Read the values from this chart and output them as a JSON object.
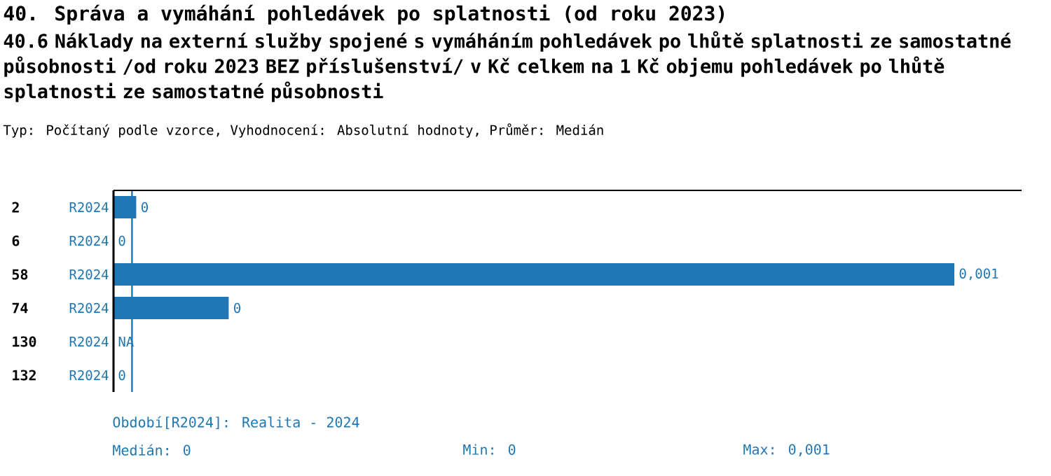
{
  "chart_data": {
    "type": "bar",
    "orientation": "horizontal",
    "title": "40. Správa a vymáhání pohledávek po splatnosti (od roku 2023)",
    "subtitle": "40.6 Náklady na externí služby spojené s vymáháním  pohledávek po lhůtě splatnosti ze samostatné působnosti /od roku 2023 BEZ příslušenství/ v Kč celkem na 1 Kč objemu pohledávek po lhůtě splatnosti ze samostatné působnosti",
    "categories": [
      "2",
      "6",
      "58",
      "74",
      "130",
      "132"
    ],
    "series": [
      {
        "name": "R2024",
        "color": "#1f77b4",
        "values": [
          2.7e-05,
          0,
          0.001,
          0.000137,
          null,
          0
        ],
        "value_labels": [
          "0",
          "0",
          "0,001",
          "0",
          "NA",
          "0"
        ]
      }
    ],
    "ref_lines": [
      {
        "axis": "x",
        "value": 2.2e-05,
        "color": "#1f77b4"
      }
    ],
    "annotations": [
      "Typ: Počítaný podle vzorce, Vyhodnocení: Absolutní hodnoty, Průměr: Medián",
      "Období[R2024]: Realita - 2024",
      "Medián: 0",
      "Min: 0",
      "Max: 0,001"
    ]
  }
}
